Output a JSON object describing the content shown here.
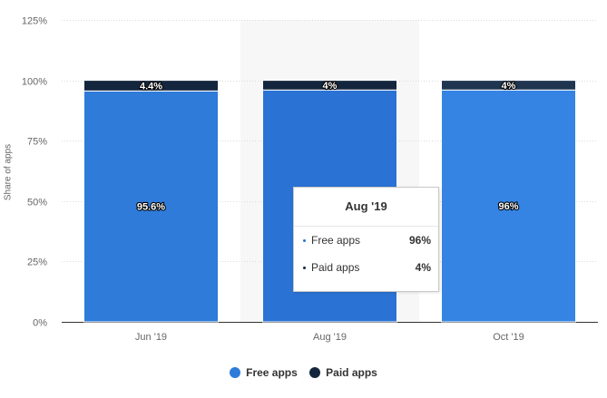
{
  "chart_data": {
    "type": "bar",
    "stacked": true,
    "categories": [
      "Jun '19",
      "Aug '19",
      "Oct '19"
    ],
    "series": [
      {
        "name": "Free apps",
        "values": [
          95.6,
          96,
          96
        ],
        "labels": [
          "95.6%",
          "96%",
          "96%"
        ],
        "colors": [
          "#2e7bd9",
          "#2a72d4",
          "#3584e4"
        ]
      },
      {
        "name": "Paid apps",
        "values": [
          4.4,
          4,
          4
        ],
        "labels": [
          "4.4%",
          "4%",
          "4%"
        ],
        "colors": [
          "#14263d",
          "#14263d",
          "#1f3550"
        ]
      }
    ],
    "ylabel": "Share of apps",
    "xlabel": "",
    "ylim": [
      0,
      125
    ],
    "yticks": [
      0,
      25,
      50,
      75,
      100,
      125
    ],
    "ytick_labels": [
      "0%",
      "25%",
      "50%",
      "75%",
      "100%",
      "125%"
    ],
    "grid": true,
    "highlighted_category": "Aug '19",
    "legend_position": "bottom"
  },
  "tooltip": {
    "title": "Aug '19",
    "rows": [
      {
        "label": "Free apps",
        "value": "96%",
        "color": "#2a72d4"
      },
      {
        "label": "Paid apps",
        "value": "4%",
        "color": "#14263d"
      }
    ]
  },
  "legend": {
    "items": [
      {
        "label": "Free apps",
        "color": "#2e7bd9"
      },
      {
        "label": "Paid apps",
        "color": "#14263d"
      }
    ]
  }
}
